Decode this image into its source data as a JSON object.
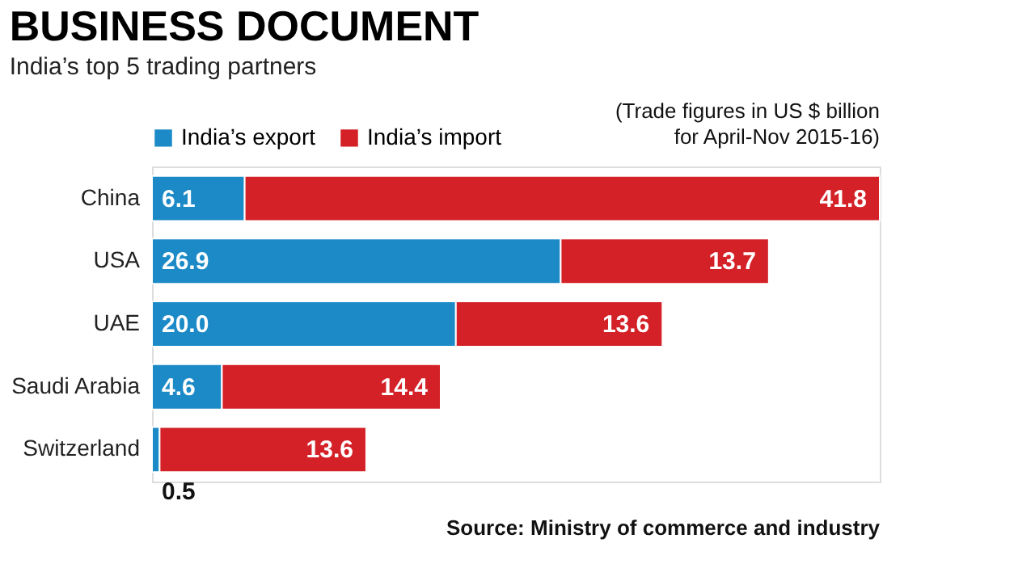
{
  "chart_data": {
    "type": "bar",
    "orientation": "horizontal",
    "stacked": true,
    "title": "BUSINESS DOCUMENT",
    "subtitle": "India’s top 5 trading partners",
    "categories": [
      "China",
      "USA",
      "UAE",
      "Saudi Arabia",
      "Switzerland"
    ],
    "series": [
      {
        "name": "India’s export",
        "color": "#1b8ac6",
        "values": [
          6.1,
          26.9,
          20.0,
          4.6,
          0.5
        ],
        "value_labels": [
          "6.1",
          "26.9",
          "20.0",
          "4.6",
          "0.5"
        ]
      },
      {
        "name": "India’s import",
        "color": "#d42027",
        "values": [
          41.8,
          13.7,
          13.6,
          14.4,
          13.6
        ],
        "value_labels": [
          "41.8",
          "13.7",
          "13.6",
          "14.4",
          "13.6"
        ]
      }
    ],
    "legend": "top left",
    "annotations": [
      "(Trade figures in US $ billion for April-Nov 2015-16)",
      "Source: Ministry of commerce and industry"
    ]
  }
}
